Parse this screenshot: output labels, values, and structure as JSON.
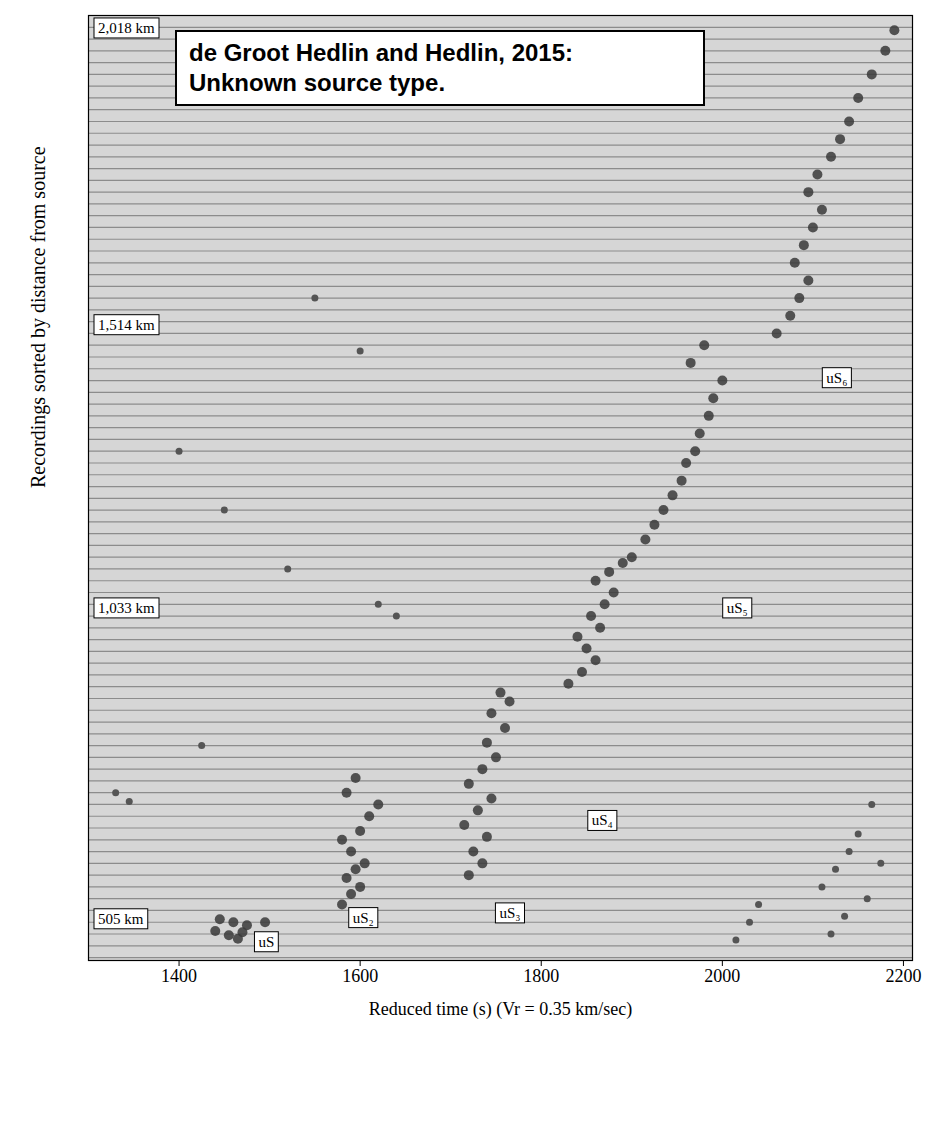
{
  "chart_data": {
    "type": "scatter",
    "title": "de Groot Hedlin and Hedlin, 2015:",
    "subtitle": "Unknown source type.",
    "xlabel": "Reduced time (s) (Vr = 0.35 km/sec)",
    "ylabel": "Recordings sorted by distance from source",
    "xlim": [
      1300,
      2210
    ],
    "xticks": [
      1400,
      1600,
      1800,
      2000,
      2200
    ],
    "ylim": [
      435,
      2040
    ],
    "tick_labels": "x",
    "color": "#3a3a3a",
    "distance_labels": [
      {
        "value": 2018,
        "label": "2,018 km"
      },
      {
        "value": 1514,
        "label": "1,514 km"
      },
      {
        "value": 1033,
        "label": "1,033 km"
      },
      {
        "value": 505,
        "label": "505 km"
      }
    ],
    "traces": [
      440,
      460,
      480,
      500,
      520,
      540,
      560,
      580,
      600,
      620,
      640,
      660,
      680,
      700,
      720,
      740,
      760,
      780,
      800,
      820,
      840,
      860,
      880,
      900,
      920,
      940,
      960,
      980,
      1000,
      1020,
      1040,
      1060,
      1080,
      1100,
      1120,
      1140,
      1160,
      1180,
      1200,
      1220,
      1240,
      1260,
      1280,
      1300,
      1320,
      1340,
      1360,
      1380,
      1400,
      1420,
      1440,
      1460,
      1480,
      1500,
      1520,
      1540,
      1560,
      1580,
      1600,
      1620,
      1640,
      1660,
      1680,
      1700,
      1720,
      1740,
      1760,
      1780,
      1800,
      1820,
      1840,
      1860,
      1880,
      1900,
      1920,
      1940,
      1960,
      1980,
      2000,
      2020
    ],
    "series": [
      {
        "name": "uS",
        "label_at": [
          1497,
          466
        ],
        "x": [
          1445,
          1460,
          1475,
          1440,
          1455,
          1470,
          1495,
          1465
        ],
        "y": [
          505,
          500,
          495,
          485,
          478,
          483,
          500,
          472
        ]
      },
      {
        "name": "uS₂",
        "label_at": [
          1604,
          507
        ],
        "x": [
          1580,
          1590,
          1600,
          1585,
          1595,
          1605,
          1590,
          1580,
          1600,
          1610,
          1620,
          1585,
          1595
        ],
        "y": [
          530,
          548,
          560,
          575,
          590,
          600,
          620,
          640,
          655,
          680,
          700,
          720,
          745
        ]
      },
      {
        "name": "uS₃",
        "label_at": [
          1766,
          515
        ],
        "x": [
          1720,
          1735,
          1725,
          1740,
          1715,
          1730,
          1745,
          1720,
          1735,
          1750,
          1740,
          1760,
          1745,
          1765,
          1755
        ],
        "y": [
          580,
          600,
          620,
          645,
          665,
          690,
          710,
          735,
          760,
          780,
          805,
          830,
          855,
          875,
          890
        ]
      },
      {
        "name": "uS₄",
        "label_at": [
          1868,
          672
        ],
        "x": [
          1830,
          1845,
          1860,
          1850,
          1840,
          1865,
          1855,
          1870,
          1880,
          1860,
          1875,
          1890
        ],
        "y": [
          905,
          925,
          945,
          965,
          985,
          1000,
          1020,
          1040,
          1060,
          1080,
          1095,
          1110
        ]
      },
      {
        "name": "uS₅",
        "label_at": [
          2017,
          1033
        ],
        "x": [
          1900,
          1915,
          1925,
          1935,
          1945,
          1955,
          1960,
          1970,
          1975,
          1985,
          1990,
          2000,
          1965,
          1980
        ],
        "y": [
          1120,
          1150,
          1175,
          1200,
          1225,
          1250,
          1280,
          1300,
          1330,
          1360,
          1390,
          1420,
          1450,
          1480
        ]
      },
      {
        "name": "uS₆",
        "label_at": [
          2127,
          1424
        ],
        "x": [
          2060,
          2075,
          2085,
          2095,
          2080,
          2090,
          2100,
          2110,
          2095,
          2105,
          2120,
          2130,
          2140,
          2150,
          2165,
          2180,
          2190
        ],
        "y": [
          1500,
          1530,
          1560,
          1590,
          1620,
          1650,
          1680,
          1710,
          1740,
          1770,
          1800,
          1830,
          1860,
          1900,
          1940,
          1980,
          2015
        ]
      }
    ],
    "other_arrivals": {
      "x": [
        2110,
        2125,
        2140,
        2150,
        2165,
        2120,
        2135,
        2160,
        2175,
        2015,
        2030,
        2040,
        1330,
        1345,
        1425,
        1620,
        1640,
        1600,
        1550,
        1400,
        1450,
        1520
      ],
      "y": [
        560,
        590,
        620,
        650,
        700,
        480,
        510,
        540,
        600,
        470,
        500,
        530,
        720,
        705,
        800,
        1040,
        1020,
        1470,
        1560,
        1300,
        1200,
        1100
      ]
    }
  }
}
